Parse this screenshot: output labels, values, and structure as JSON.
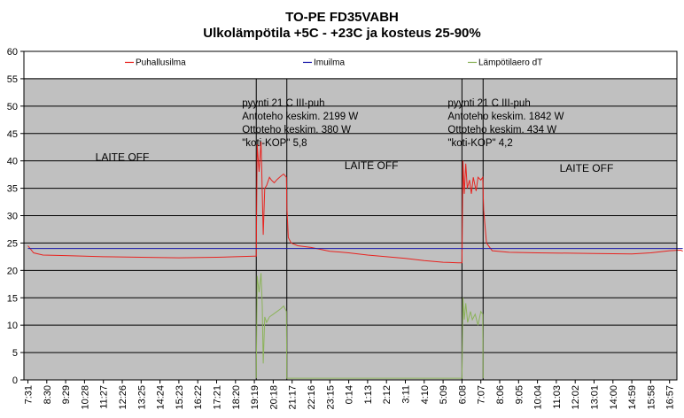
{
  "chart_data": {
    "type": "line",
    "title": "TO-PE FD35VABH",
    "subtitle": "Ulkolämpötila +5C - +23C ja kosteus 25-90%",
    "ylim": [
      0,
      60
    ],
    "yticks": [
      0,
      5,
      10,
      15,
      20,
      25,
      30,
      35,
      40,
      45,
      50,
      55,
      60
    ],
    "xticks": [
      "7:31",
      "8:30",
      "9:29",
      "10:28",
      "11:27",
      "12:26",
      "13:25",
      "14:24",
      "15:23",
      "16:22",
      "17:21",
      "18:20",
      "19:19",
      "20:18",
      "21:17",
      "22:16",
      "23:15",
      "0:14",
      "1:13",
      "2:12",
      "3:11",
      "4:10",
      "5:09",
      "6:08",
      "7:07",
      "8:06",
      "9:05",
      "10:04",
      "11:03",
      "12:02",
      "13:01",
      "14:00",
      "14:59",
      "15:58",
      "16:57"
    ],
    "grid": true,
    "legend_position": "top",
    "series": [
      {
        "name": "Puhallusilma",
        "color": "#e8231f",
        "points": [
          [
            0,
            24.5
          ],
          [
            0.3,
            23.2
          ],
          [
            0.8,
            22.8
          ],
          [
            2,
            22.7
          ],
          [
            4,
            22.5
          ],
          [
            6,
            22.4
          ],
          [
            8,
            22.3
          ],
          [
            10,
            22.4
          ],
          [
            11,
            22.5
          ],
          [
            12,
            22.6
          ],
          [
            12.1,
            22.6
          ],
          [
            12.15,
            43
          ],
          [
            12.25,
            38
          ],
          [
            12.35,
            43.5
          ],
          [
            12.4,
            37
          ],
          [
            12.47,
            26.5
          ],
          [
            12.55,
            35
          ],
          [
            12.65,
            35.5
          ],
          [
            12.8,
            37
          ],
          [
            12.9,
            36.5
          ],
          [
            13.05,
            36
          ],
          [
            13.2,
            36.6
          ],
          [
            13.4,
            37.2
          ],
          [
            13.55,
            37.6
          ],
          [
            13.7,
            37
          ],
          [
            13.72,
            32
          ],
          [
            13.8,
            26
          ],
          [
            13.95,
            25
          ],
          [
            14.3,
            24.5
          ],
          [
            15,
            24.2
          ],
          [
            16,
            23.5
          ],
          [
            17,
            23.2
          ],
          [
            18,
            22.8
          ],
          [
            19,
            22.5
          ],
          [
            20,
            22.2
          ],
          [
            21,
            21.8
          ],
          [
            22,
            21.5
          ],
          [
            22.8,
            21.4
          ],
          [
            23.0,
            21.4
          ],
          [
            23.05,
            40
          ],
          [
            23.12,
            34
          ],
          [
            23.2,
            39.5
          ],
          [
            23.28,
            35
          ],
          [
            23.4,
            36.5
          ],
          [
            23.5,
            34
          ],
          [
            23.6,
            37
          ],
          [
            23.75,
            34.5
          ],
          [
            23.85,
            37
          ],
          [
            24.0,
            36.5
          ],
          [
            24.1,
            37
          ],
          [
            24.15,
            31
          ],
          [
            24.3,
            25
          ],
          [
            24.6,
            23.6
          ],
          [
            25.5,
            23.3
          ],
          [
            27,
            23.2
          ],
          [
            30,
            23.1
          ],
          [
            32,
            23.0
          ],
          [
            33,
            23.2
          ],
          [
            34,
            23.6
          ],
          [
            34.6,
            23.7
          ],
          [
            34.7,
            23.5
          ]
        ]
      },
      {
        "name": "Imuilma",
        "color": "#1a1aaa",
        "points": [
          [
            0,
            24.0
          ],
          [
            34.7,
            24.0
          ]
        ]
      },
      {
        "name": "Lämpötilaero dT",
        "color": "#8cb35a",
        "points": [
          [
            12.1,
            0.3
          ],
          [
            12.15,
            19
          ],
          [
            12.25,
            16
          ],
          [
            12.35,
            19.5
          ],
          [
            12.42,
            13.5
          ],
          [
            12.47,
            3
          ],
          [
            12.55,
            11.5
          ],
          [
            12.65,
            10.5
          ],
          [
            12.8,
            11.5
          ],
          [
            13.0,
            12.0
          ],
          [
            13.2,
            12.5
          ],
          [
            13.4,
            13
          ],
          [
            13.55,
            13.5
          ],
          [
            13.7,
            12.5
          ],
          [
            13.72,
            0.3
          ],
          [
            23.0,
            0.3
          ],
          [
            23.05,
            15
          ],
          [
            23.12,
            11
          ],
          [
            23.2,
            14
          ],
          [
            23.3,
            10.5
          ],
          [
            23.45,
            12.5
          ],
          [
            23.55,
            11
          ],
          [
            23.7,
            12
          ],
          [
            23.85,
            10
          ],
          [
            24.0,
            12.5
          ],
          [
            24.1,
            12
          ],
          [
            24.12,
            0.3
          ]
        ]
      }
    ],
    "annotations": [
      {
        "lines": [
          "pyynti 21 C III-puh",
          "Antoteho keskim. 2199 W",
          "Ottoteho keskim. 380 W",
          "\"koti-KOP\" 5,8"
        ]
      },
      {
        "lines": [
          "pyynti 21 C III-puh",
          "Antoteho keskim. 1842 W",
          "Ottoteho keskim. 434 W",
          "\"koti-KOP\" 4,2"
        ]
      }
    ],
    "region_labels": [
      "LAITE OFF",
      "LAITE OFF",
      "LAITE OFF"
    ]
  }
}
